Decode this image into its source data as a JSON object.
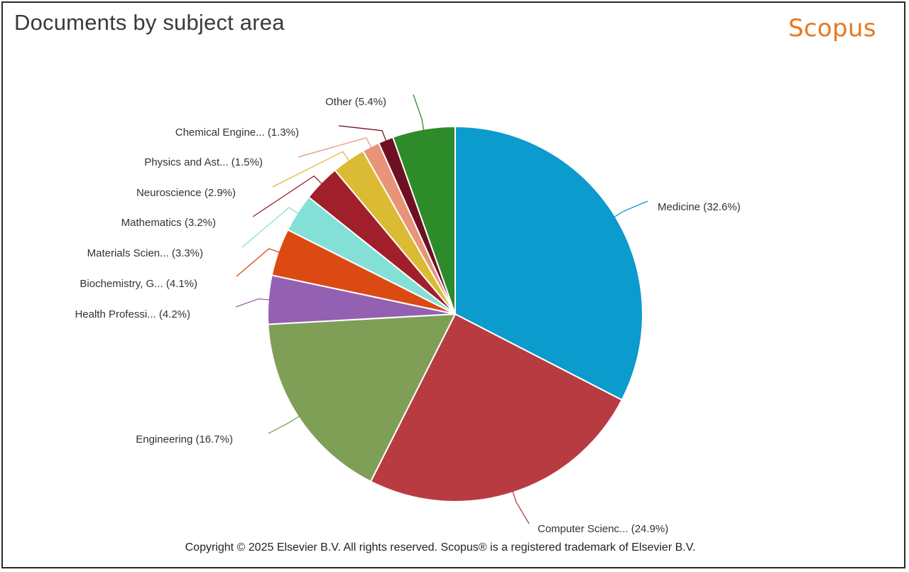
{
  "chart_data": {
    "type": "pie",
    "title": "Documents by subject area",
    "slices": [
      {
        "label": "Medicine (32.6%)",
        "value": 32.6,
        "color": "#0b9bcd"
      },
      {
        "label": "Computer Scienc... (24.9%)",
        "value": 24.9,
        "color": "#b83b41"
      },
      {
        "label": "Engineering (16.7%)",
        "value": 16.7,
        "color": "#7f9f56"
      },
      {
        "label": "Health Professi... (4.2%)",
        "value": 4.2,
        "color": "#9461b2"
      },
      {
        "label": "Biochemistry, G... (4.1%)",
        "value": 4.1,
        "color": "#dc4a14"
      },
      {
        "label": "Materials Scien... (3.3%)",
        "value": 3.3,
        "color": "#84e0d6"
      },
      {
        "label": "Mathematics (3.2%)",
        "value": 3.2,
        "color": "#a01f2a"
      },
      {
        "label": "Neuroscience (2.9%)",
        "value": 2.9,
        "color": "#dbbb33"
      },
      {
        "label": "Physics and Ast... (1.5%)",
        "value": 1.5,
        "color": "#e79479"
      },
      {
        "label": "Chemical Engine... (1.3%)",
        "value": 1.3,
        "color": "#6e1021"
      },
      {
        "label": "Other (5.4%)",
        "value": 5.4,
        "color": "#2e8b2a"
      }
    ],
    "legend": "none",
    "start_angle": "12 o'clock, clockwise"
  },
  "brand": "Scopus",
  "copyright": "Copyright © 2025 Elsevier B.V. All rights reserved. Scopus® is a registered trademark of Elsevier B.V."
}
